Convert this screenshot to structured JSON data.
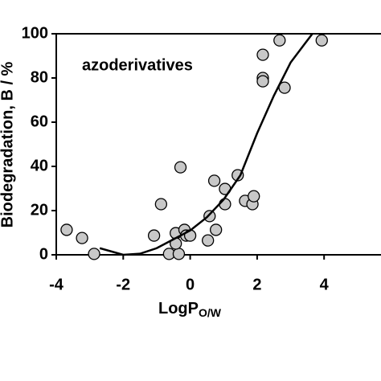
{
  "chart_data": {
    "type": "scatter",
    "y_label": "Biodegradation, B / %",
    "x_label": "LogP",
    "x_label_sub": "O/W",
    "annotation": "azoderivatives",
    "xlim": [
      -4,
      5.7
    ],
    "ylim": [
      0,
      100
    ],
    "xticks": [
      -4,
      -2,
      0,
      2,
      4
    ],
    "yticks": [
      0,
      20,
      40,
      60,
      80,
      100
    ],
    "point_color": "#c8c8c8",
    "series": [
      {
        "x": [
          -3.69,
          -3.23,
          -2.87,
          -1.08,
          -0.87,
          -0.63,
          -0.43,
          -0.34,
          -0.43,
          -0.29,
          -0.17,
          -0.12,
          0,
          0.58,
          0.53,
          0.77,
          0.72,
          1.04,
          1.04,
          1.42,
          1.64,
          1.86,
          1.9,
          2.17,
          2.17,
          2.17,
          2.67,
          2.82,
          3.93
        ],
        "values": [
          11.3,
          7.6,
          0.4,
          8.7,
          22.9,
          0.4,
          9.8,
          0.4,
          5.1,
          39.6,
          11.3,
          8.7,
          8.7,
          17.5,
          6.5,
          11.3,
          33.5,
          29.8,
          22.9,
          36,
          24.4,
          22.9,
          26.5,
          90.5,
          80,
          78.5,
          97,
          75.6,
          97
        ]
      }
    ],
    "fit": {
      "color": "#000000",
      "x": [
        -2.7,
        -2,
        -1.5,
        -1,
        -0.5,
        0,
        0.5,
        1,
        1.5,
        2,
        2.5,
        3,
        3.65
      ],
      "values": [
        3,
        0,
        0.5,
        3,
        7,
        11,
        17,
        25,
        36,
        55,
        72,
        87,
        100
      ]
    }
  }
}
